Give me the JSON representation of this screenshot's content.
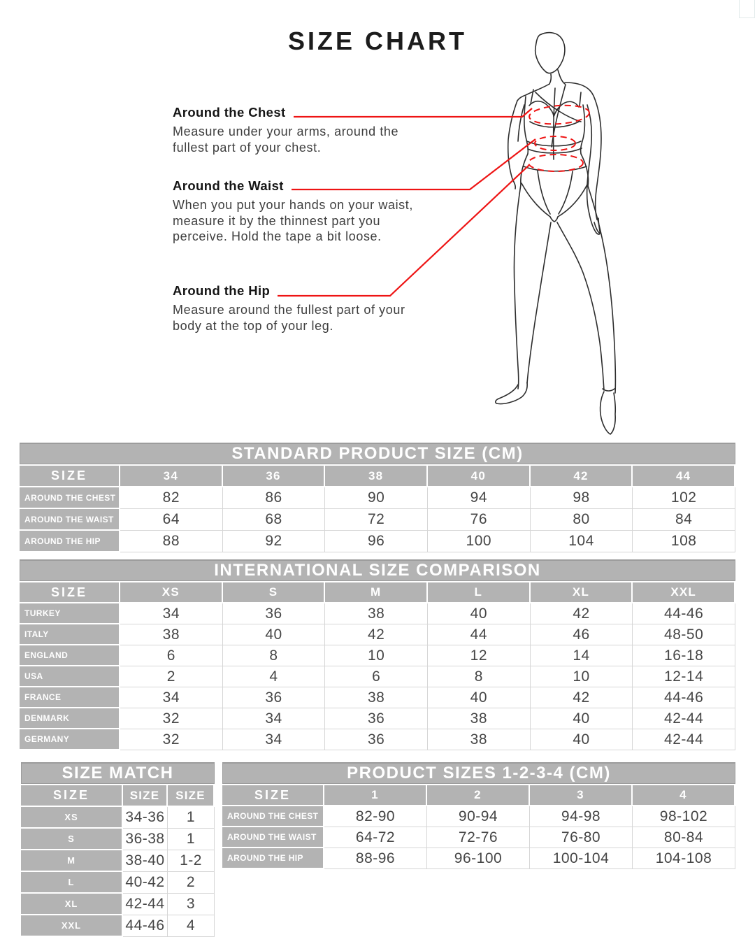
{
  "page": {
    "title": "SIZE CHART"
  },
  "colors": {
    "accent_red": "#ee1414",
    "header_gray": "#b3b3b3"
  },
  "measurements": [
    {
      "label": "Around the Chest",
      "description": "Measure under your arms, around the fullest part of your chest."
    },
    {
      "label": "Around the Waist",
      "description": "When you put your hands on your waist, measure it by the thinnest part you perceive. Hold the tape a bit loose."
    },
    {
      "label": "Around the Hip",
      "description": "Measure around the fullest part of your body at the top of your leg."
    }
  ],
  "figure": {
    "icon": "fashion-croquis-line-drawing",
    "callout_rings": [
      "chest",
      "waist",
      "hip"
    ]
  },
  "tables": {
    "standard": {
      "title": "STANDARD PRODUCT SIZE (CM)",
      "header": [
        "SIZE",
        "34",
        "36",
        "38",
        "40",
        "42",
        "44"
      ],
      "rows": [
        {
          "label": "AROUND THE CHEST",
          "values": [
            "82",
            "86",
            "90",
            "94",
            "98",
            "102"
          ]
        },
        {
          "label": "AROUND THE WAIST",
          "values": [
            "64",
            "68",
            "72",
            "76",
            "80",
            "84"
          ]
        },
        {
          "label": "AROUND THE HIP",
          "values": [
            "88",
            "92",
            "96",
            "100",
            "104",
            "108"
          ]
        }
      ]
    },
    "international": {
      "title": "INTERNATIONAL SIZE COMPARISON",
      "header": [
        "SIZE",
        "XS",
        "S",
        "M",
        "L",
        "XL",
        "XXL"
      ],
      "rows": [
        {
          "label": "TURKEY",
          "values": [
            "34",
            "36",
            "38",
            "40",
            "42",
            "44-46"
          ]
        },
        {
          "label": "ITALY",
          "values": [
            "38",
            "40",
            "42",
            "44",
            "46",
            "48-50"
          ]
        },
        {
          "label": "ENGLAND",
          "values": [
            "6",
            "8",
            "10",
            "12",
            "14",
            "16-18"
          ]
        },
        {
          "label": "USA",
          "values": [
            "2",
            "4",
            "6",
            "8",
            "10",
            "12-14"
          ]
        },
        {
          "label": "FRANCE",
          "values": [
            "34",
            "36",
            "38",
            "40",
            "42",
            "44-46"
          ]
        },
        {
          "label": "DENMARK",
          "values": [
            "32",
            "34",
            "36",
            "38",
            "40",
            "42-44"
          ]
        },
        {
          "label": "GERMANY",
          "values": [
            "32",
            "34",
            "36",
            "38",
            "40",
            "42-44"
          ]
        }
      ]
    },
    "size_match": {
      "title": "SIZE MATCH",
      "header": [
        "SIZE",
        "SIZE",
        "SIZE"
      ],
      "rows": [
        {
          "label": "XS",
          "values": [
            "34-36",
            "1"
          ]
        },
        {
          "label": "S",
          "values": [
            "36-38",
            "1"
          ]
        },
        {
          "label": "M",
          "values": [
            "38-40",
            "1-2"
          ]
        },
        {
          "label": "L",
          "values": [
            "40-42",
            "2"
          ]
        },
        {
          "label": "XL",
          "values": [
            "42-44",
            "3"
          ]
        },
        {
          "label": "XXL",
          "values": [
            "44-46",
            "4"
          ]
        }
      ]
    },
    "product": {
      "title": "PRODUCT SIZES 1-2-3-4 (CM)",
      "header": [
        "SIZE",
        "1",
        "2",
        "3",
        "4"
      ],
      "rows": [
        {
          "label": "AROUND THE CHEST",
          "values": [
            "82-90",
            "90-94",
            "94-98",
            "98-102"
          ]
        },
        {
          "label": "AROUND THE WAIST",
          "values": [
            "64-72",
            "72-76",
            "76-80",
            "80-84"
          ]
        },
        {
          "label": "AROUND THE HIP",
          "values": [
            "88-96",
            "96-100",
            "100-104",
            "104-108"
          ]
        }
      ]
    }
  }
}
